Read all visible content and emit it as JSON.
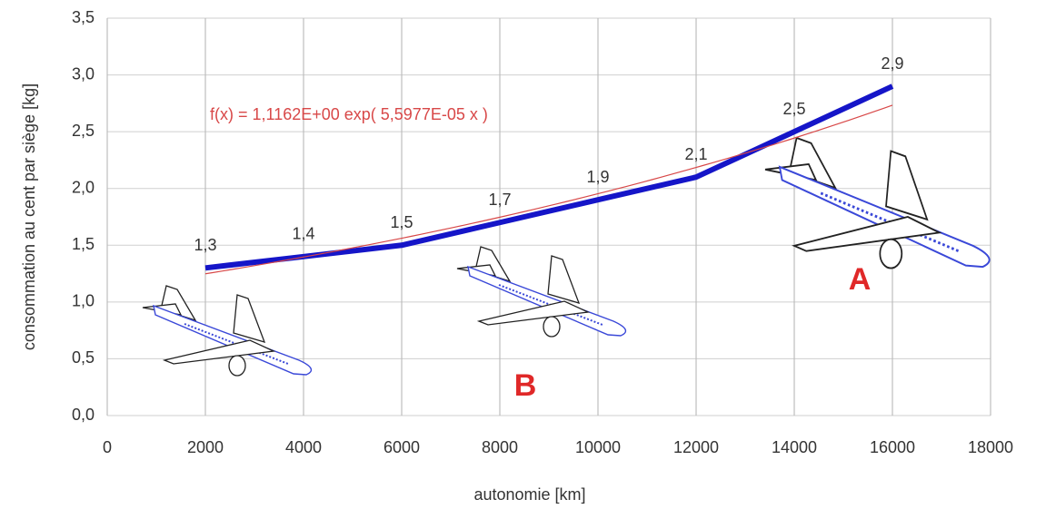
{
  "chart_data": {
    "type": "line",
    "x_label": "autonomie [km]",
    "y_label": "consommation au cent par siège [kg]",
    "x": [
      2000,
      4000,
      6000,
      8000,
      10000,
      12000,
      14000,
      16000
    ],
    "values": [
      1.3,
      1.4,
      1.5,
      1.7,
      1.9,
      2.1,
      2.5,
      2.9
    ],
    "value_labels": [
      "1,3",
      "1,4",
      "1,5",
      "1,7",
      "1,9",
      "2,1",
      "2,5",
      "2,9"
    ],
    "color": "#1515c8",
    "trendline": {
      "label": "f(x) = 1,1162E+00 exp( 5,5977E-05 x )",
      "a": 1.1162,
      "b": 5.5977e-05,
      "color": "#d84848"
    },
    "annotations": [
      "A",
      "B"
    ],
    "annotation_color": "#e02828",
    "xlim": [
      0,
      18000
    ],
    "xticks": [
      0,
      2000,
      4000,
      6000,
      8000,
      10000,
      12000,
      14000,
      16000,
      18000
    ],
    "ylim": [
      0,
      3.5
    ],
    "yticks": [
      {
        "value": 0,
        "label": "0,0"
      },
      {
        "value": 0.5,
        "label": "0,5"
      },
      {
        "value": 1,
        "label": "1,0"
      },
      {
        "value": 1.5,
        "label": "1,5"
      },
      {
        "value": 2,
        "label": "2,0"
      },
      {
        "value": 2.5,
        "label": "2,5"
      },
      {
        "value": 3,
        "label": "3,0"
      },
      {
        "value": 3.5,
        "label": "3,5"
      }
    ],
    "grid": true
  }
}
